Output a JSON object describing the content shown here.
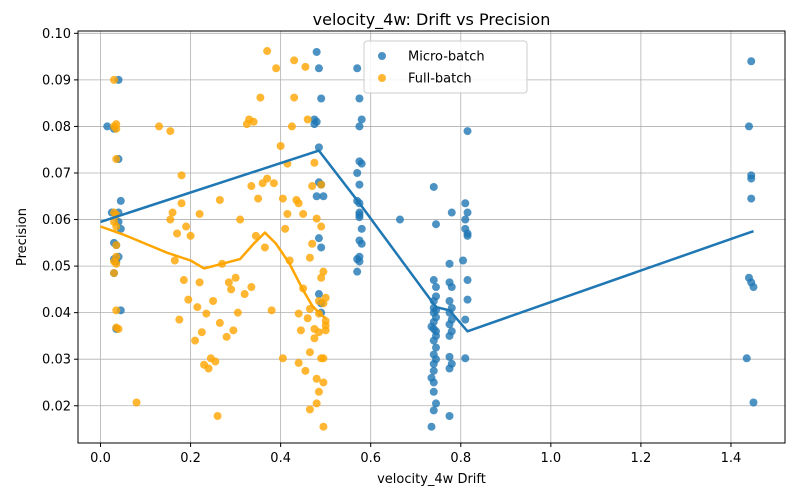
{
  "chart_data": {
    "type": "scatter",
    "title": "velocity_4w: Drift vs Precision",
    "xlabel": "velocity_4w Drift",
    "ylabel": "Precision",
    "xlim": [
      -0.05,
      1.52
    ],
    "ylim": [
      0.012,
      0.1005
    ],
    "xticks": [
      "0.0",
      "0.2",
      "0.4",
      "0.6",
      "0.8",
      "1.0",
      "1.2",
      "1.4"
    ],
    "xtick_values": [
      0.0,
      0.2,
      0.4,
      0.6,
      0.8,
      1.0,
      1.2,
      1.4
    ],
    "yticks": [
      "0.02",
      "0.03",
      "0.04",
      "0.05",
      "0.06",
      "0.07",
      "0.08",
      "0.09",
      "0.10"
    ],
    "ytick_values": [
      0.02,
      0.03,
      0.04,
      0.05,
      0.06,
      0.07,
      0.08,
      0.09,
      0.1
    ],
    "grid": true,
    "legend_position": "top-center",
    "series": [
      {
        "name": "Micro-batch",
        "color": "#1f77b4",
        "points": [
          [
            0.015,
            0.08
          ],
          [
            0.025,
            0.0615
          ],
          [
            0.03,
            0.0795
          ],
          [
            0.03,
            0.055
          ],
          [
            0.03,
            0.0515
          ],
          [
            0.03,
            0.0485
          ],
          [
            0.035,
            0.0545
          ],
          [
            0.035,
            0.051
          ],
          [
            0.035,
            0.0365
          ],
          [
            0.04,
            0.09
          ],
          [
            0.04,
            0.073
          ],
          [
            0.04,
            0.0615
          ],
          [
            0.04,
            0.0595
          ],
          [
            0.04,
            0.052
          ],
          [
            0.045,
            0.064
          ],
          [
            0.045,
            0.058
          ],
          [
            0.045,
            0.0405
          ],
          [
            0.48,
            0.096
          ],
          [
            0.485,
            0.0925
          ],
          [
            0.475,
            0.0815
          ],
          [
            0.48,
            0.081
          ],
          [
            0.475,
            0.0805
          ],
          [
            0.49,
            0.086
          ],
          [
            0.485,
            0.0755
          ],
          [
            0.485,
            0.068
          ],
          [
            0.49,
            0.0675
          ],
          [
            0.48,
            0.065
          ],
          [
            0.495,
            0.065
          ],
          [
            0.485,
            0.056
          ],
          [
            0.49,
            0.054
          ],
          [
            0.485,
            0.044
          ],
          [
            0.49,
            0.042
          ],
          [
            0.49,
            0.04
          ],
          [
            0.57,
            0.0925
          ],
          [
            0.575,
            0.086
          ],
          [
            0.58,
            0.0815
          ],
          [
            0.575,
            0.08
          ],
          [
            0.575,
            0.0725
          ],
          [
            0.58,
            0.072
          ],
          [
            0.57,
            0.07
          ],
          [
            0.575,
            0.0675
          ],
          [
            0.57,
            0.064
          ],
          [
            0.575,
            0.0635
          ],
          [
            0.575,
            0.0615
          ],
          [
            0.575,
            0.061
          ],
          [
            0.575,
            0.0605
          ],
          [
            0.58,
            0.058
          ],
          [
            0.575,
            0.0555
          ],
          [
            0.58,
            0.0548
          ],
          [
            0.575,
            0.052
          ],
          [
            0.57,
            0.0515
          ],
          [
            0.575,
            0.051
          ],
          [
            0.57,
            0.0488
          ],
          [
            0.665,
            0.06
          ],
          [
            0.74,
            0.067
          ],
          [
            0.745,
            0.059
          ],
          [
            0.74,
            0.047
          ],
          [
            0.745,
            0.0455
          ],
          [
            0.745,
            0.0435
          ],
          [
            0.74,
            0.0425
          ],
          [
            0.74,
            0.041
          ],
          [
            0.745,
            0.0405
          ],
          [
            0.74,
            0.04
          ],
          [
            0.745,
            0.039
          ],
          [
            0.74,
            0.038
          ],
          [
            0.735,
            0.037
          ],
          [
            0.74,
            0.0365
          ],
          [
            0.745,
            0.036
          ],
          [
            0.745,
            0.035
          ],
          [
            0.74,
            0.034
          ],
          [
            0.745,
            0.0325
          ],
          [
            0.74,
            0.031
          ],
          [
            0.745,
            0.03
          ],
          [
            0.74,
            0.029
          ],
          [
            0.74,
            0.0275
          ],
          [
            0.735,
            0.026
          ],
          [
            0.74,
            0.025
          ],
          [
            0.74,
            0.023
          ],
          [
            0.745,
            0.0205
          ],
          [
            0.74,
            0.019
          ],
          [
            0.735,
            0.0155
          ],
          [
            0.78,
            0.0615
          ],
          [
            0.775,
            0.0505
          ],
          [
            0.775,
            0.0465
          ],
          [
            0.78,
            0.0455
          ],
          [
            0.775,
            0.0425
          ],
          [
            0.78,
            0.041
          ],
          [
            0.775,
            0.04
          ],
          [
            0.78,
            0.0385
          ],
          [
            0.775,
            0.0375
          ],
          [
            0.78,
            0.036
          ],
          [
            0.775,
            0.035
          ],
          [
            0.775,
            0.0305
          ],
          [
            0.78,
            0.029
          ],
          [
            0.775,
            0.028
          ],
          [
            0.775,
            0.0178
          ],
          [
            0.81,
            0.0635
          ],
          [
            0.815,
            0.0615
          ],
          [
            0.81,
            0.06
          ],
          [
            0.81,
            0.058
          ],
          [
            0.815,
            0.057
          ],
          [
            0.815,
            0.0565
          ],
          [
            0.805,
            0.0512
          ],
          [
            0.815,
            0.047
          ],
          [
            0.815,
            0.0428
          ],
          [
            0.81,
            0.0385
          ],
          [
            0.81,
            0.0302
          ],
          [
            0.815,
            0.079
          ],
          [
            1.445,
            0.094
          ],
          [
            1.44,
            0.08
          ],
          [
            1.445,
            0.0695
          ],
          [
            1.445,
            0.0688
          ],
          [
            1.445,
            0.0645
          ],
          [
            1.44,
            0.0475
          ],
          [
            1.445,
            0.0465
          ],
          [
            1.45,
            0.0455
          ],
          [
            1.435,
            0.0302
          ],
          [
            1.45,
            0.0207
          ]
        ],
        "trend": [
          [
            0.0,
            0.0595
          ],
          [
            0.485,
            0.0748
          ],
          [
            0.575,
            0.0635
          ],
          [
            0.745,
            0.0412
          ],
          [
            0.775,
            0.0405
          ],
          [
            0.815,
            0.036
          ],
          [
            1.42,
            0.0565
          ],
          [
            1.45,
            0.0575
          ]
        ]
      },
      {
        "name": "Full-batch",
        "color": "#ffa500",
        "points": [
          [
            0.03,
            0.09
          ],
          [
            0.035,
            0.0805
          ],
          [
            0.03,
            0.08
          ],
          [
            0.035,
            0.0795
          ],
          [
            0.035,
            0.073
          ],
          [
            0.03,
            0.0615
          ],
          [
            0.035,
            0.061
          ],
          [
            0.03,
            0.0595
          ],
          [
            0.035,
            0.0585
          ],
          [
            0.035,
            0.0545
          ],
          [
            0.035,
            0.052
          ],
          [
            0.03,
            0.051
          ],
          [
            0.035,
            0.0505
          ],
          [
            0.03,
            0.0485
          ],
          [
            0.035,
            0.0405
          ],
          [
            0.035,
            0.0368
          ],
          [
            0.04,
            0.0365
          ],
          [
            0.08,
            0.0207
          ],
          [
            0.13,
            0.08
          ],
          [
            0.155,
            0.079
          ],
          [
            0.155,
            0.06
          ],
          [
            0.16,
            0.0615
          ],
          [
            0.165,
            0.0512
          ],
          [
            0.17,
            0.057
          ],
          [
            0.175,
            0.0385
          ],
          [
            0.18,
            0.0695
          ],
          [
            0.18,
            0.0635
          ],
          [
            0.185,
            0.047
          ],
          [
            0.19,
            0.0585
          ],
          [
            0.195,
            0.0428
          ],
          [
            0.2,
            0.0565
          ],
          [
            0.21,
            0.034
          ],
          [
            0.215,
            0.0412
          ],
          [
            0.22,
            0.0612
          ],
          [
            0.22,
            0.0465
          ],
          [
            0.225,
            0.0358
          ],
          [
            0.23,
            0.0288
          ],
          [
            0.235,
            0.0398
          ],
          [
            0.24,
            0.028
          ],
          [
            0.245,
            0.0302
          ],
          [
            0.25,
            0.0425
          ],
          [
            0.255,
            0.0295
          ],
          [
            0.26,
            0.0178
          ],
          [
            0.265,
            0.0642
          ],
          [
            0.265,
            0.0378
          ],
          [
            0.27,
            0.0505
          ],
          [
            0.28,
            0.0348
          ],
          [
            0.285,
            0.0465
          ],
          [
            0.29,
            0.045
          ],
          [
            0.295,
            0.0362
          ],
          [
            0.3,
            0.0475
          ],
          [
            0.305,
            0.04
          ],
          [
            0.31,
            0.06
          ],
          [
            0.32,
            0.044
          ],
          [
            0.325,
            0.0805
          ],
          [
            0.33,
            0.0815
          ],
          [
            0.335,
            0.0672
          ],
          [
            0.335,
            0.0455
          ],
          [
            0.34,
            0.081
          ],
          [
            0.345,
            0.0565
          ],
          [
            0.35,
            0.0645
          ],
          [
            0.355,
            0.0862
          ],
          [
            0.36,
            0.0678
          ],
          [
            0.365,
            0.054
          ],
          [
            0.37,
            0.0962
          ],
          [
            0.37,
            0.0688
          ],
          [
            0.38,
            0.0405
          ],
          [
            0.385,
            0.0678
          ],
          [
            0.39,
            0.0925
          ],
          [
            0.4,
            0.0758
          ],
          [
            0.405,
            0.0645
          ],
          [
            0.405,
            0.0302
          ],
          [
            0.41,
            0.058
          ],
          [
            0.415,
            0.072
          ],
          [
            0.415,
            0.0612
          ],
          [
            0.42,
            0.0512
          ],
          [
            0.425,
            0.08
          ],
          [
            0.43,
            0.0862
          ],
          [
            0.43,
            0.0942
          ],
          [
            0.435,
            0.0642
          ],
          [
            0.44,
            0.0635
          ],
          [
            0.44,
            0.0398
          ],
          [
            0.44,
            0.0292
          ],
          [
            0.445,
            0.0362
          ],
          [
            0.45,
            0.0612
          ],
          [
            0.45,
            0.0452
          ],
          [
            0.455,
            0.0928
          ],
          [
            0.455,
            0.0275
          ],
          [
            0.46,
            0.0815
          ],
          [
            0.46,
            0.0388
          ],
          [
            0.465,
            0.0518
          ],
          [
            0.465,
            0.0408
          ],
          [
            0.465,
            0.0315
          ],
          [
            0.465,
            0.0192
          ],
          [
            0.47,
            0.0548
          ],
          [
            0.47,
            0.0672
          ],
          [
            0.475,
            0.0722
          ],
          [
            0.475,
            0.0365
          ],
          [
            0.475,
            0.0345
          ],
          [
            0.48,
            0.0602
          ],
          [
            0.48,
            0.0258
          ],
          [
            0.48,
            0.0205
          ],
          [
            0.485,
            0.0425
          ],
          [
            0.485,
            0.0398
          ],
          [
            0.485,
            0.0358
          ],
          [
            0.485,
            0.023
          ],
          [
            0.49,
            0.0675
          ],
          [
            0.49,
            0.0585
          ],
          [
            0.49,
            0.0475
          ],
          [
            0.49,
            0.0302
          ],
          [
            0.495,
            0.0488
          ],
          [
            0.495,
            0.042
          ],
          [
            0.495,
            0.0302
          ],
          [
            0.495,
            0.025
          ],
          [
            0.5,
            0.0432
          ],
          [
            0.5,
            0.0382
          ],
          [
            0.5,
            0.0372
          ],
          [
            0.5,
            0.0362
          ],
          [
            0.495,
            0.0155
          ]
        ],
        "trend": [
          [
            0.0,
            0.0585
          ],
          [
            0.05,
            0.0568
          ],
          [
            0.15,
            0.0528
          ],
          [
            0.2,
            0.0512
          ],
          [
            0.23,
            0.0495
          ],
          [
            0.27,
            0.0505
          ],
          [
            0.31,
            0.0515
          ],
          [
            0.34,
            0.0548
          ],
          [
            0.365,
            0.0572
          ],
          [
            0.39,
            0.0548
          ],
          [
            0.42,
            0.0505
          ],
          [
            0.45,
            0.0448
          ],
          [
            0.47,
            0.0415
          ],
          [
            0.49,
            0.0395
          ],
          [
            0.5,
            0.0388
          ]
        ]
      }
    ]
  }
}
